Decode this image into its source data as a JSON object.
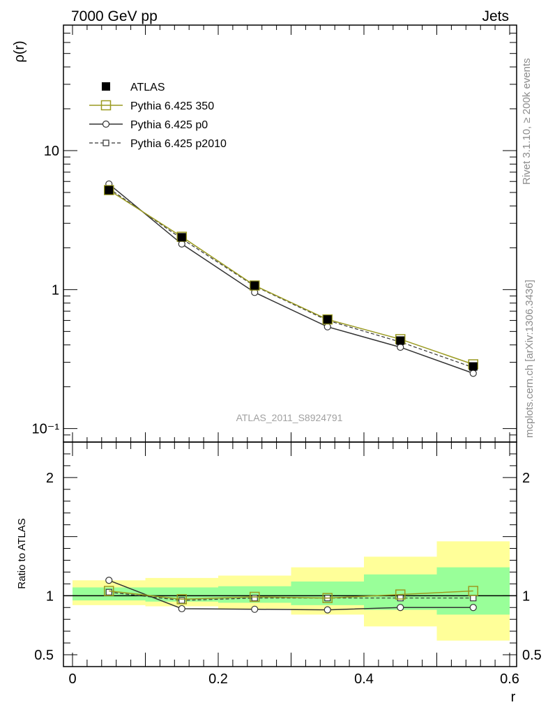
{
  "header": {
    "left_title": "7000 GeV pp",
    "right_title": "Jets"
  },
  "side_labels": {
    "rivet": "Rivet 3.1.10, ≥ 200k events",
    "mcplots": "mcplots.cern.ch [arXiv:1306.3436]"
  },
  "analysis_label": "ATLAS_2011_S8924791",
  "colors": {
    "atlas": "#000000",
    "pythia350": "#9a9a20",
    "pythia_p0": "#333333",
    "pythia_p2010": "#333333",
    "band_inner": "#99ff99",
    "band_outer": "#ffff99"
  },
  "chart_data": [
    {
      "type": "line",
      "panel": "main",
      "ylabel": "ρ(r)",
      "xlim": [
        0,
        0.6
      ],
      "ylim": [
        0.08,
        80
      ],
      "yscale": "log",
      "y_ticks": [
        {
          "value": 10,
          "label": "10"
        },
        {
          "value": 1,
          "label": "1"
        },
        {
          "value": 0.1,
          "label": "10⁻¹"
        }
      ],
      "legend_position": "top-left",
      "x": [
        0.05,
        0.15,
        0.25,
        0.35,
        0.45,
        0.55
      ],
      "series": [
        {
          "name": "ATLAS",
          "key": "atlas",
          "values": [
            5.2,
            2.38,
            1.07,
            0.61,
            0.43,
            0.28
          ]
        },
        {
          "name": "Pythia 6.425 350",
          "key": "pythia350",
          "values": [
            5.2,
            2.4,
            1.07,
            0.61,
            0.44,
            0.29
          ]
        },
        {
          "name": "Pythia 6.425 p0",
          "key": "pythia_p0",
          "values": [
            5.75,
            2.13,
            0.955,
            0.54,
            0.385,
            0.25
          ]
        },
        {
          "name": "Pythia 6.425 p2010",
          "key": "pythia_p2010",
          "values": [
            5.35,
            2.32,
            1.06,
            0.6,
            0.42,
            0.275
          ]
        }
      ]
    },
    {
      "type": "line",
      "panel": "ratio",
      "ylabel": "Ratio to ATLAS",
      "xlabel": "r",
      "xlim": [
        -0.02,
        0.6
      ],
      "ylim": [
        0.4,
        2.3
      ],
      "y_ticks": [
        {
          "value": 2,
          "label": "2"
        },
        {
          "value": 1,
          "label": "1"
        },
        {
          "value": 0.5,
          "label": "0.5"
        }
      ],
      "x_ticks": [
        {
          "value": 0,
          "label": "0"
        },
        {
          "value": 0.2,
          "label": "0.2"
        },
        {
          "value": 0.4,
          "label": "0.4"
        },
        {
          "value": 0.6,
          "label": "0.6"
        }
      ],
      "x": [
        0.05,
        0.15,
        0.25,
        0.35,
        0.45,
        0.55
      ],
      "bands": [
        {
          "x0": 0.0,
          "x1": 0.1,
          "inner": [
            0.96,
            1.07
          ],
          "outer": [
            0.92,
            1.13
          ]
        },
        {
          "x0": 0.1,
          "x1": 0.2,
          "inner": [
            0.95,
            1.07
          ],
          "outer": [
            0.91,
            1.15
          ]
        },
        {
          "x0": 0.2,
          "x1": 0.3,
          "inner": [
            0.94,
            1.08
          ],
          "outer": [
            0.89,
            1.17
          ]
        },
        {
          "x0": 0.3,
          "x1": 0.4,
          "inner": [
            0.92,
            1.12
          ],
          "outer": [
            0.84,
            1.24
          ]
        },
        {
          "x0": 0.4,
          "x1": 0.5,
          "inner": [
            0.88,
            1.18
          ],
          "outer": [
            0.74,
            1.33
          ]
        },
        {
          "x0": 0.5,
          "x1": 0.6,
          "inner": [
            0.84,
            1.24
          ],
          "outer": [
            0.62,
            1.46
          ]
        }
      ],
      "series": [
        {
          "name": "Pythia 6.425 350",
          "key": "pythia350",
          "values": [
            1.04,
            0.97,
            0.99,
            0.98,
            1.01,
            1.04
          ]
        },
        {
          "name": "Pythia 6.425 p0",
          "key": "pythia_p0",
          "values": [
            1.13,
            0.89,
            0.885,
            0.88,
            0.9,
            0.9
          ]
        },
        {
          "name": "Pythia 6.425 p2010",
          "key": "pythia_p2010",
          "values": [
            1.03,
            0.96,
            0.98,
            0.98,
            0.98,
            0.98
          ]
        }
      ]
    }
  ]
}
